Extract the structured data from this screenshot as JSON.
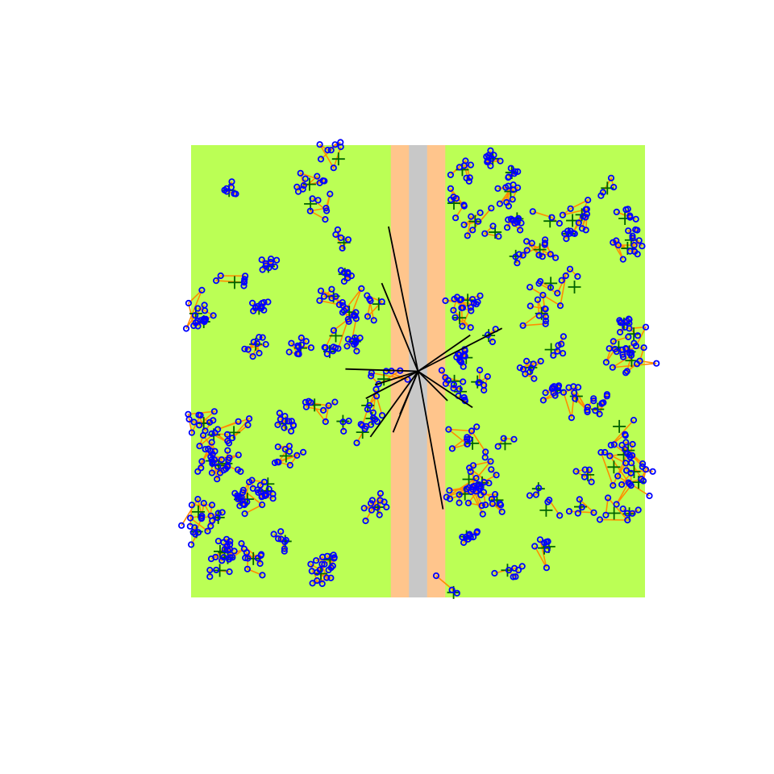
{
  "colors": {
    "background": "#ffffff",
    "habitat": "#bbff55",
    "buffer_zone": "#ffc58c",
    "road": "#c8c8c8",
    "home_range_crosshair": "#006400",
    "movement_path": "#ff8c00",
    "location_marker": "#0000ff",
    "dispersal_line": "#000000"
  },
  "landscape": {
    "x_range": [
      0,
      100
    ],
    "y_range": [
      0,
      100
    ],
    "buffer_zone_x": [
      44,
      56
    ],
    "road_x": [
      48,
      52
    ],
    "crossing_point": [
      50,
      50
    ]
  },
  "dispersal_endpoints": [
    [
      43.5,
      82.0
    ],
    [
      42.0,
      69.5
    ],
    [
      34.0,
      50.5
    ],
    [
      40.5,
      47.0
    ],
    [
      38.5,
      44.0
    ],
    [
      46.0,
      40.5
    ],
    [
      39.5,
      35.5
    ],
    [
      44.5,
      36.5
    ],
    [
      56.5,
      43.5
    ],
    [
      62.0,
      42.0
    ],
    [
      55.5,
      19.5
    ],
    [
      61.5,
      58.0
    ],
    [
      68.5,
      59.5
    ]
  ]
}
